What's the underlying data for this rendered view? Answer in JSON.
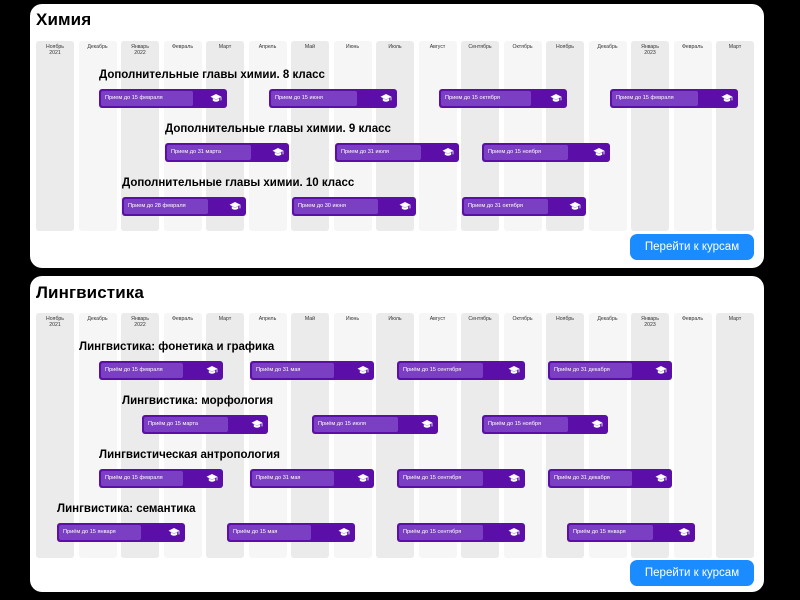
{
  "months": [
    "Ноябрь\n2021",
    "Декабрь",
    "Январь\n2022",
    "Февраль",
    "Март",
    "Апрель",
    "Май",
    "Июнь",
    "Июль",
    "Август",
    "Сентябрь",
    "Октябрь",
    "Ноябрь",
    "Декабрь",
    "Январь\n2023",
    "Февраль",
    "Март"
  ],
  "sections": [
    {
      "title": "Химия",
      "button": "Перейти к курсам",
      "courses": [
        {
          "title": "Дополнительные главы химии. 8 класс",
          "bars": [
            "Прием до 15 февраля",
            "Прием до 15 июня",
            "Прием до 15 октября",
            "Прием до 15 февраля"
          ]
        },
        {
          "title": "Дополнительные главы химии. 9 класс",
          "bars": [
            "Прием до 31 марта",
            "Прием до 31 июля",
            "Прием до 15 ноября"
          ]
        },
        {
          "title": "Дополнительные главы химии. 10 класс",
          "bars": [
            "Прием до 28 февраля",
            "Прием до 30 июня",
            "Прием до 31 октября"
          ]
        }
      ]
    },
    {
      "title": "Лингвистика",
      "button": "Перейти к курсам",
      "courses": [
        {
          "title": "Лингвистика: фонетика и графика",
          "bars": [
            "Приём до 15 февраля",
            "Приём до 31 мая",
            "Приём до 15 сентября",
            "Приём до 31 декабря"
          ]
        },
        {
          "title": "Лингвистика: морфология",
          "bars": [
            "Приём до 15 марта",
            "Приём до 15 июля",
            "Приём до 15 ноября"
          ]
        },
        {
          "title": "Лингвистическая антропология",
          "bars": [
            "Приём до 15 февраля",
            "Приём до 31 мая",
            "Приём до 15 сентября",
            "Приём до 31 декабря"
          ]
        },
        {
          "title": "Лингвистика: семантика",
          "bars": [
            "Приём до 15 января",
            "Приём до 15 мая",
            "Приём до 15 сентября",
            "Приём до 15 января"
          ]
        }
      ]
    }
  ],
  "icon": "graduation-cap-icon",
  "colors": {
    "bar": "#5b0fa8",
    "bar_inner": "#7b3fc4",
    "button": "#1a8cff",
    "column": "#ebebeb"
  }
}
